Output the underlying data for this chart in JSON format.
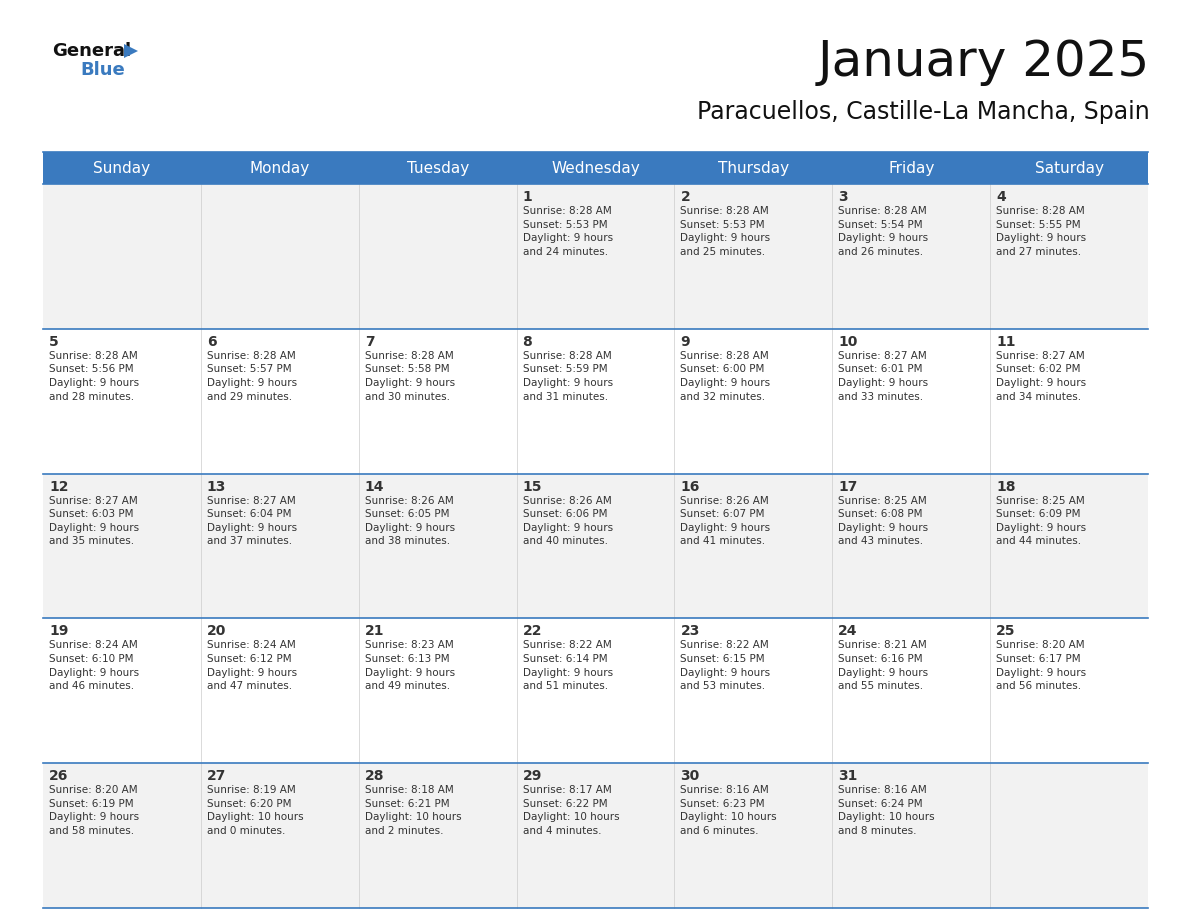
{
  "title": "January 2025",
  "subtitle": "Paracuellos, Castille-La Mancha, Spain",
  "header_bg": "#3a7abf",
  "header_text_color": "#ffffff",
  "cell_bg_odd": "#f2f2f2",
  "cell_bg_even": "#ffffff",
  "border_color": "#3a7abf",
  "text_color": "#333333",
  "days_of_week": [
    "Sunday",
    "Monday",
    "Tuesday",
    "Wednesday",
    "Thursday",
    "Friday",
    "Saturday"
  ],
  "weeks": [
    [
      {
        "day": "",
        "info": ""
      },
      {
        "day": "",
        "info": ""
      },
      {
        "day": "",
        "info": ""
      },
      {
        "day": "1",
        "info": "Sunrise: 8:28 AM\nSunset: 5:53 PM\nDaylight: 9 hours\nand 24 minutes."
      },
      {
        "day": "2",
        "info": "Sunrise: 8:28 AM\nSunset: 5:53 PM\nDaylight: 9 hours\nand 25 minutes."
      },
      {
        "day": "3",
        "info": "Sunrise: 8:28 AM\nSunset: 5:54 PM\nDaylight: 9 hours\nand 26 minutes."
      },
      {
        "day": "4",
        "info": "Sunrise: 8:28 AM\nSunset: 5:55 PM\nDaylight: 9 hours\nand 27 minutes."
      }
    ],
    [
      {
        "day": "5",
        "info": "Sunrise: 8:28 AM\nSunset: 5:56 PM\nDaylight: 9 hours\nand 28 minutes."
      },
      {
        "day": "6",
        "info": "Sunrise: 8:28 AM\nSunset: 5:57 PM\nDaylight: 9 hours\nand 29 minutes."
      },
      {
        "day": "7",
        "info": "Sunrise: 8:28 AM\nSunset: 5:58 PM\nDaylight: 9 hours\nand 30 minutes."
      },
      {
        "day": "8",
        "info": "Sunrise: 8:28 AM\nSunset: 5:59 PM\nDaylight: 9 hours\nand 31 minutes."
      },
      {
        "day": "9",
        "info": "Sunrise: 8:28 AM\nSunset: 6:00 PM\nDaylight: 9 hours\nand 32 minutes."
      },
      {
        "day": "10",
        "info": "Sunrise: 8:27 AM\nSunset: 6:01 PM\nDaylight: 9 hours\nand 33 minutes."
      },
      {
        "day": "11",
        "info": "Sunrise: 8:27 AM\nSunset: 6:02 PM\nDaylight: 9 hours\nand 34 minutes."
      }
    ],
    [
      {
        "day": "12",
        "info": "Sunrise: 8:27 AM\nSunset: 6:03 PM\nDaylight: 9 hours\nand 35 minutes."
      },
      {
        "day": "13",
        "info": "Sunrise: 8:27 AM\nSunset: 6:04 PM\nDaylight: 9 hours\nand 37 minutes."
      },
      {
        "day": "14",
        "info": "Sunrise: 8:26 AM\nSunset: 6:05 PM\nDaylight: 9 hours\nand 38 minutes."
      },
      {
        "day": "15",
        "info": "Sunrise: 8:26 AM\nSunset: 6:06 PM\nDaylight: 9 hours\nand 40 minutes."
      },
      {
        "day": "16",
        "info": "Sunrise: 8:26 AM\nSunset: 6:07 PM\nDaylight: 9 hours\nand 41 minutes."
      },
      {
        "day": "17",
        "info": "Sunrise: 8:25 AM\nSunset: 6:08 PM\nDaylight: 9 hours\nand 43 minutes."
      },
      {
        "day": "18",
        "info": "Sunrise: 8:25 AM\nSunset: 6:09 PM\nDaylight: 9 hours\nand 44 minutes."
      }
    ],
    [
      {
        "day": "19",
        "info": "Sunrise: 8:24 AM\nSunset: 6:10 PM\nDaylight: 9 hours\nand 46 minutes."
      },
      {
        "day": "20",
        "info": "Sunrise: 8:24 AM\nSunset: 6:12 PM\nDaylight: 9 hours\nand 47 minutes."
      },
      {
        "day": "21",
        "info": "Sunrise: 8:23 AM\nSunset: 6:13 PM\nDaylight: 9 hours\nand 49 minutes."
      },
      {
        "day": "22",
        "info": "Sunrise: 8:22 AM\nSunset: 6:14 PM\nDaylight: 9 hours\nand 51 minutes."
      },
      {
        "day": "23",
        "info": "Sunrise: 8:22 AM\nSunset: 6:15 PM\nDaylight: 9 hours\nand 53 minutes."
      },
      {
        "day": "24",
        "info": "Sunrise: 8:21 AM\nSunset: 6:16 PM\nDaylight: 9 hours\nand 55 minutes."
      },
      {
        "day": "25",
        "info": "Sunrise: 8:20 AM\nSunset: 6:17 PM\nDaylight: 9 hours\nand 56 minutes."
      }
    ],
    [
      {
        "day": "26",
        "info": "Sunrise: 8:20 AM\nSunset: 6:19 PM\nDaylight: 9 hours\nand 58 minutes."
      },
      {
        "day": "27",
        "info": "Sunrise: 8:19 AM\nSunset: 6:20 PM\nDaylight: 10 hours\nand 0 minutes."
      },
      {
        "day": "28",
        "info": "Sunrise: 8:18 AM\nSunset: 6:21 PM\nDaylight: 10 hours\nand 2 minutes."
      },
      {
        "day": "29",
        "info": "Sunrise: 8:17 AM\nSunset: 6:22 PM\nDaylight: 10 hours\nand 4 minutes."
      },
      {
        "day": "30",
        "info": "Sunrise: 8:16 AM\nSunset: 6:23 PM\nDaylight: 10 hours\nand 6 minutes."
      },
      {
        "day": "31",
        "info": "Sunrise: 8:16 AM\nSunset: 6:24 PM\nDaylight: 10 hours\nand 8 minutes."
      },
      {
        "day": "",
        "info": ""
      }
    ]
  ],
  "logo_general_color": "#111111",
  "logo_blue_color": "#3a7abf",
  "logo_triangle_color": "#3a7abf",
  "title_fontsize": 36,
  "subtitle_fontsize": 17,
  "header_fontsize": 11,
  "day_num_fontsize": 10,
  "info_fontsize": 7.5
}
